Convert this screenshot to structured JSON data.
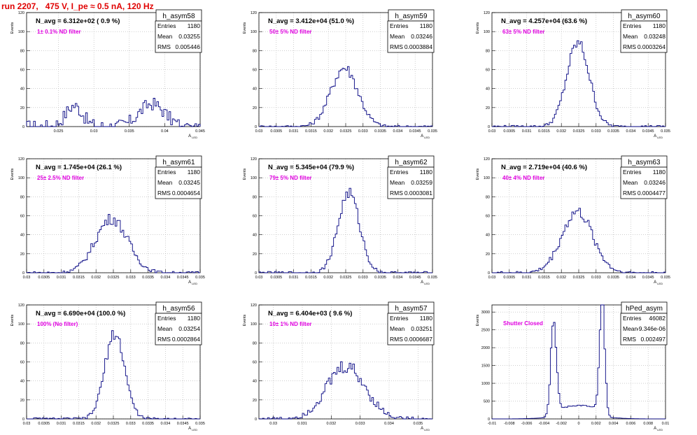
{
  "run_title": "run 2207,   475 V, I_pe ≈ 0.5 nA, 120 Hz",
  "colors": {
    "histogram": "#000080",
    "filter_label": "#e000e0",
    "title_red": "#e00000",
    "grid": "#b0b0b0"
  },
  "chart_data": [
    {
      "type": "histogram",
      "name": "h_asym58",
      "n_avg": "N_avg = 6.312e+02 ( 0.9 %)",
      "filter": "1± 0.1% ND filter",
      "stats": {
        "entries": "1180",
        "mean": "0.03255",
        "rms": "0.005446"
      },
      "xlim": [
        0.0205,
        0.045
      ],
      "ylim": [
        0,
        120
      ],
      "xticks": [
        0.025,
        0.03,
        0.035,
        0.04,
        0.045
      ],
      "xtick_labels": [
        "0.025",
        "0.03",
        "0.035",
        "0.04",
        "0.045"
      ],
      "yticks": [
        0,
        20,
        40,
        60,
        80,
        100,
        120
      ],
      "ytick_labels": [
        "0",
        "20",
        "40",
        "60",
        "80",
        "100",
        "120"
      ],
      "xlabel": "A_LED",
      "ylabel": "Events",
      "mean": 0.03255,
      "rms": 0.005446,
      "peak": 30,
      "shape": "bimodal-noisy"
    },
    {
      "type": "histogram",
      "name": "h_asym59",
      "n_avg": "N_avg = 3.412e+04 (51.0 %)",
      "filter": "50± 5% ND filter",
      "stats": {
        "entries": "1180",
        "mean": "0.03246",
        "rms": "0.0003884"
      },
      "xlim": [
        0.03,
        0.035
      ],
      "ylim": [
        0,
        120
      ],
      "xticks": [
        0.03,
        0.0305,
        0.031,
        0.0315,
        0.032,
        0.0325,
        0.033,
        0.0335,
        0.034,
        0.0345,
        0.035
      ],
      "xtick_labels": [
        "0.03",
        "0.0305",
        "0.031",
        "0.0315",
        "0.032",
        "0.0325",
        "0.033",
        "0.0335",
        "0.034",
        "0.0345",
        "0.035"
      ],
      "yticks": [
        0,
        20,
        40,
        60,
        80,
        100,
        120
      ],
      "ytick_labels": [
        "0",
        "20",
        "40",
        "60",
        "80",
        "100",
        "120"
      ],
      "xlabel": "A_LED",
      "ylabel": "Events",
      "mean": 0.03246,
      "rms": 0.0003884,
      "peak": 62,
      "shape": "gauss"
    },
    {
      "type": "histogram",
      "name": "h_asym60",
      "n_avg": "N_avg = 4.257e+04 (63.6 %)",
      "filter": "63± 5% ND filter",
      "stats": {
        "entries": "1180",
        "mean": "0.03248",
        "rms": "0.0003264"
      },
      "xlim": [
        0.03,
        0.035
      ],
      "ylim": [
        0,
        120
      ],
      "xticks": [
        0.03,
        0.0305,
        0.031,
        0.0315,
        0.032,
        0.0325,
        0.033,
        0.0335,
        0.034,
        0.0345,
        0.035
      ],
      "xtick_labels": [
        "0.03",
        "0.0305",
        "0.031",
        "0.0315",
        "0.032",
        "0.0325",
        "0.033",
        "0.0335",
        "0.034",
        "0.0345",
        "0.035"
      ],
      "yticks": [
        0,
        20,
        40,
        60,
        80,
        100,
        120
      ],
      "ytick_labels": [
        "0",
        "20",
        "40",
        "60",
        "80",
        "100",
        "120"
      ],
      "xlabel": "A_LED",
      "ylabel": "Events",
      "mean": 0.03248,
      "rms": 0.0003264,
      "peak": 88,
      "shape": "gauss"
    },
    {
      "type": "histogram",
      "name": "h_asym61",
      "n_avg": "N_avg = 1.745e+04 (26.1 %)",
      "filter": "25± 2.5% ND filter",
      "stats": {
        "entries": "1180",
        "mean": "0.03245",
        "rms": "0.0004654"
      },
      "xlim": [
        0.03,
        0.035
      ],
      "ylim": [
        0,
        120
      ],
      "xticks": [
        0.03,
        0.0305,
        0.031,
        0.0315,
        0.032,
        0.0325,
        0.033,
        0.0335,
        0.034,
        0.0345,
        0.035
      ],
      "xtick_labels": [
        "0.03",
        "0.0305",
        "0.031",
        "0.0315",
        "0.032",
        "0.0325",
        "0.033",
        "0.0335",
        "0.034",
        "0.0345",
        "0.035"
      ],
      "yticks": [
        0,
        20,
        40,
        60,
        80,
        100,
        120
      ],
      "ytick_labels": [
        "0",
        "20",
        "40",
        "60",
        "80",
        "100",
        "120"
      ],
      "xlabel": "A_LED",
      "ylabel": "Events",
      "mean": 0.03245,
      "rms": 0.0004654,
      "peak": 57,
      "shape": "gauss"
    },
    {
      "type": "histogram",
      "name": "h_asym62",
      "n_avg": "N_avg = 5.345e+04 (79.9 %)",
      "filter": "79± 5% ND filter",
      "stats": {
        "entries": "1180",
        "mean": "0.03259",
        "rms": "0.0003081"
      },
      "xlim": [
        0.03,
        0.035
      ],
      "ylim": [
        0,
        120
      ],
      "xticks": [
        0.03,
        0.0305,
        0.031,
        0.0315,
        0.032,
        0.0325,
        0.033,
        0.0335,
        0.034,
        0.0345,
        0.035
      ],
      "xtick_labels": [
        "0.03",
        "0.0305",
        "0.031",
        "0.0315",
        "0.032",
        "0.0325",
        "0.033",
        "0.0335",
        "0.034",
        "0.0345",
        "0.035"
      ],
      "yticks": [
        0,
        20,
        40,
        60,
        80,
        100,
        120
      ],
      "ytick_labels": [
        "0",
        "20",
        "40",
        "60",
        "80",
        "100",
        "120"
      ],
      "xlabel": "A_LED",
      "ylabel": "Events",
      "mean": 0.03259,
      "rms": 0.0003081,
      "peak": 84,
      "shape": "gauss"
    },
    {
      "type": "histogram",
      "name": "h_asym63",
      "n_avg": "N_avg = 2.719e+04 (40.6 %)",
      "filter": "40± 4% ND filter",
      "stats": {
        "entries": "1180",
        "mean": "0.03246",
        "rms": "0.0004477"
      },
      "xlim": [
        0.03,
        0.035
      ],
      "ylim": [
        0,
        120
      ],
      "xticks": [
        0.03,
        0.0305,
        0.031,
        0.0315,
        0.032,
        0.0325,
        0.033,
        0.0335,
        0.034,
        0.0345,
        0.035
      ],
      "xtick_labels": [
        "0.03",
        "0.0305",
        "0.031",
        "0.0315",
        "0.032",
        "0.0325",
        "0.033",
        "0.0335",
        "0.034",
        "0.0345",
        "0.035"
      ],
      "yticks": [
        0,
        20,
        40,
        60,
        80,
        100,
        120
      ],
      "ytick_labels": [
        "0",
        "20",
        "40",
        "60",
        "80",
        "100",
        "120"
      ],
      "xlabel": "A_LED",
      "ylabel": "Events",
      "mean": 0.03246,
      "rms": 0.0004477,
      "peak": 64,
      "shape": "gauss"
    },
    {
      "type": "histogram",
      "name": "h_asym56",
      "n_avg": "N_avg = 6.690e+04 (100.0 %)",
      "filter": "100% (No filter)",
      "stats": {
        "entries": "1180",
        "mean": "0.03254",
        "rms": "0.0002864"
      },
      "xlim": [
        0.03,
        0.035
      ],
      "ylim": [
        0,
        120
      ],
      "xticks": [
        0.03,
        0.0305,
        0.031,
        0.0315,
        0.032,
        0.0325,
        0.033,
        0.0335,
        0.034,
        0.0345,
        0.035
      ],
      "xtick_labels": [
        "0.03",
        "0.0305",
        "0.031",
        "0.0315",
        "0.032",
        "0.0325",
        "0.033",
        "0.0335",
        "0.034",
        "0.0345",
        "0.035"
      ],
      "yticks": [
        0,
        20,
        40,
        60,
        80,
        100,
        120
      ],
      "ytick_labels": [
        "0",
        "20",
        "40",
        "60",
        "80",
        "100",
        "120"
      ],
      "xlabel": "A_LED",
      "ylabel": "Events",
      "mean": 0.03254,
      "rms": 0.0002864,
      "peak": 90,
      "shape": "gauss"
    },
    {
      "type": "histogram",
      "name": "h_asym57",
      "n_avg": "N_avg = 6.404e+03 ( 9.6 %)",
      "filter": "10± 1% ND filter",
      "stats": {
        "entries": "1180",
        "mean": "0.03251",
        "rms": "0.0006687"
      },
      "xlim": [
        0.0295,
        0.0355
      ],
      "ylim": [
        0,
        120
      ],
      "xticks": [
        0.03,
        0.031,
        0.032,
        0.033,
        0.034,
        0.035
      ],
      "xtick_labels": [
        "0.03",
        "0.031",
        "0.032",
        "0.033",
        "0.034",
        "0.035"
      ],
      "yticks": [
        0,
        20,
        40,
        60,
        80,
        100,
        120
      ],
      "ytick_labels": [
        "0",
        "20",
        "40",
        "60",
        "80",
        "100",
        "120"
      ],
      "xlabel": "A_LED",
      "ylabel": "Events",
      "mean": 0.03251,
      "rms": 0.0006687,
      "peak": 55,
      "shape": "gauss-noisy"
    },
    {
      "type": "histogram",
      "name": "hPed_asym",
      "n_avg": "",
      "filter": "Shutter Closed",
      "stats": {
        "entries": "46082",
        "mean": "-9.346e-06",
        "rms": "0.002497"
      },
      "xlim": [
        -0.01,
        0.01
      ],
      "ylim": [
        0,
        3200
      ],
      "xticks": [
        -0.01,
        -0.008,
        -0.006,
        -0.004,
        -0.002,
        0,
        0.002,
        0.004,
        0.006,
        0.008,
        0.01
      ],
      "xtick_labels": [
        "-0.01",
        "-0.008",
        "-0.006",
        "-0.004",
        "-0.002",
        "0",
        "0.002",
        "0.004",
        "0.006",
        "0.008",
        "0.01"
      ],
      "yticks": [
        0,
        500,
        1000,
        1500,
        2000,
        2500,
        3000
      ],
      "ytick_labels": [
        "0",
        "500",
        "1000",
        "1500",
        "2000",
        "2500",
        "3000"
      ],
      "xlabel": "A_LED",
      "ylabel": "Events",
      "mean": -9.346e-06,
      "rms": 0.002497,
      "peak": 2550,
      "peak2": 3050,
      "shape": "double"
    }
  ]
}
